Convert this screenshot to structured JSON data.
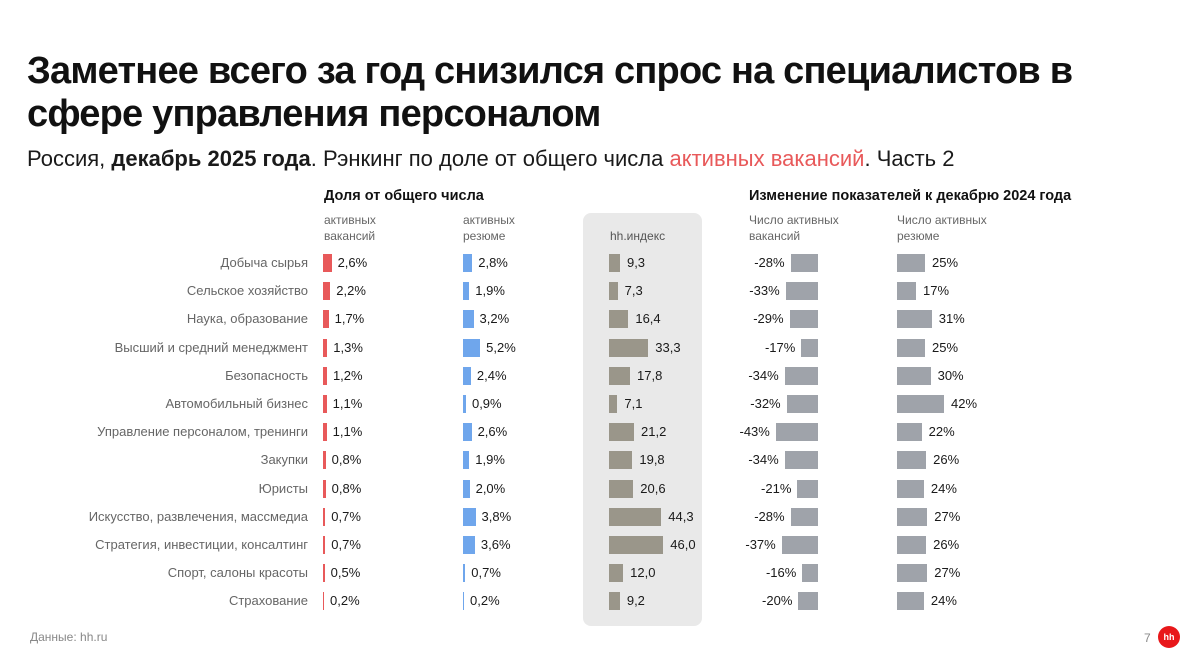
{
  "header": {
    "title": "Заметнее всего за год снизился спрос на специалистов в сфере управления персоналом",
    "subtitle_part1": "Россия, ",
    "subtitle_bold": "декабрь 2025 года",
    "subtitle_part2": ". Рэнкинг по доле от общего числа ",
    "subtitle_accent": "активных вакансий",
    "subtitle_part3": ". Часть 2"
  },
  "sections": {
    "share_header": "Доля от общего числа",
    "change_header": "Изменение показателей к декабрю 2024 года"
  },
  "columns": {
    "vacancies_share": "активных вакансий",
    "resumes_share": "активных резюме",
    "hh_index": "hh.индекс",
    "vacancies_change": "Число активных вакансий",
    "resumes_change": "Число активных резюме"
  },
  "colors": {
    "vacancies": "#e8595a",
    "resumes": "#6fa6ec",
    "hh_index": "#9a968a",
    "change": "#9fa3aa",
    "panel": "#e9e9e9"
  },
  "chart_data": {
    "type": "table",
    "categories": [
      "Добыча сырья",
      "Сельское хозяйство",
      "Наука, образование",
      "Высший и средний менеджмент",
      "Безопасность",
      "Автомобильный бизнес",
      "Управление персоналом, тренинги",
      "Закупки",
      "Юристы",
      "Искусство, развлечения, массмедиа",
      "Стратегия, инвестиции, консалтинг",
      "Спорт, салоны красоты",
      "Страхование"
    ],
    "series": [
      {
        "name": "активных вакансий",
        "values": [
          2.6,
          2.2,
          1.7,
          1.3,
          1.2,
          1.1,
          1.1,
          0.8,
          0.8,
          0.7,
          0.7,
          0.5,
          0.2
        ],
        "labels": [
          "2,6%",
          "2,2%",
          "1,7%",
          "1,3%",
          "1,2%",
          "1,1%",
          "1,1%",
          "0,8%",
          "0,8%",
          "0,7%",
          "0,7%",
          "0,5%",
          "0,2%"
        ]
      },
      {
        "name": "активных резюме",
        "values": [
          2.8,
          1.9,
          3.2,
          5.2,
          2.4,
          0.9,
          2.6,
          1.9,
          2.0,
          3.8,
          3.6,
          0.7,
          0.2
        ],
        "labels": [
          "2,8%",
          "1,9%",
          "3,2%",
          "5,2%",
          "2,4%",
          "0,9%",
          "2,6%",
          "1,9%",
          "2,0%",
          "3,8%",
          "3,6%",
          "0,7%",
          "0,2%"
        ]
      },
      {
        "name": "hh.индекс",
        "values": [
          9.3,
          7.3,
          16.4,
          33.3,
          17.8,
          7.1,
          21.2,
          19.8,
          20.6,
          44.3,
          46.0,
          12.0,
          9.2
        ],
        "labels": [
          "9,3",
          "7,3",
          "16,4",
          "33,3",
          "17,8",
          "7,1",
          "21,2",
          "19,8",
          "20,6",
          "44,3",
          "46,0",
          "12,0",
          "9,2"
        ]
      },
      {
        "name": "Число активных вакансий",
        "values": [
          -28,
          -33,
          -29,
          -17,
          -34,
          -32,
          -43,
          -34,
          -21,
          -28,
          -37,
          -16,
          -20
        ],
        "labels": [
          "-28%",
          "-33%",
          "-29%",
          "-17%",
          "-34%",
          "-32%",
          "-43%",
          "-34%",
          "-21%",
          "-28%",
          "-37%",
          "-16%",
          "-20%"
        ]
      },
      {
        "name": "Число активных резюме",
        "values": [
          25,
          17,
          31,
          25,
          30,
          42,
          22,
          26,
          24,
          27,
          26,
          27,
          24
        ],
        "labels": [
          "25%",
          "17%",
          "31%",
          "25%",
          "30%",
          "42%",
          "22%",
          "26%",
          "24%",
          "27%",
          "26%",
          "27%",
          "24%"
        ]
      }
    ]
  },
  "footer": {
    "source": "Данные: hh.ru",
    "page_number": "7",
    "logo_text": "hh"
  }
}
